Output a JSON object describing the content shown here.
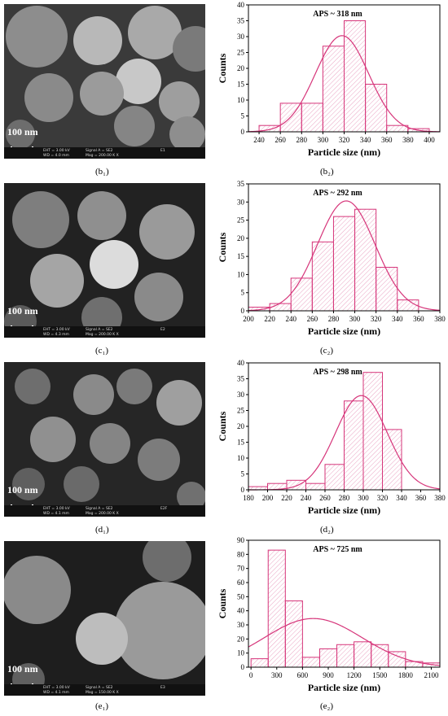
{
  "panels": [
    {
      "img": {
        "scale_label": "100 nm",
        "info": [
          "EHT = 3.00 kV",
          "WD = 4.0 mm",
          "Signal A = SE2",
          "Mag = 200.00 K X",
          "E1"
        ],
        "caption": "(b₁)"
      },
      "caption": "(b₂)"
    },
    {
      "img": {
        "scale_label": "100 nm",
        "info": [
          "EHT = 3.00 kV",
          "WD = 4.3 mm",
          "Signal A = SE2",
          "Mag = 200.00 K X",
          "E2"
        ],
        "caption": "(c₁)"
      },
      "caption": "(c₂)"
    },
    {
      "img": {
        "scale_label": "100 nm",
        "info": [
          "EHT = 3.00 kV",
          "WD = 4.1 mm",
          "Signal A = SE2",
          "Mag = 200.00 K X",
          "E2F"
        ],
        "caption": "(d₁)"
      },
      "caption": "(d₂)"
    },
    {
      "img": {
        "scale_label": "100 nm",
        "info": [
          "EHT = 3.00 kV",
          "WD = 4.1 mm",
          "Signal A = SE2",
          "Mag = 150.00 K X",
          "E3"
        ],
        "caption": "(e₁)"
      },
      "caption": "(e₂)"
    }
  ],
  "colors": {
    "bar": "#d6357a",
    "hatch": "#e58db4",
    "axis": "#000000"
  },
  "chart_data": [
    {
      "type": "bar",
      "annotation": "APS ~ 318 nm",
      "xlabel": "Particle size (nm)",
      "ylabel": "Counts",
      "xlim": [
        230,
        410
      ],
      "ylim": [
        0,
        40
      ],
      "xticks": [
        240,
        260,
        280,
        300,
        320,
        340,
        360,
        380,
        400
      ],
      "yticks": [
        0,
        5,
        10,
        15,
        20,
        25,
        30,
        35,
        40
      ],
      "bin_edges": [
        240,
        260,
        280,
        300,
        320,
        340,
        360,
        380,
        400
      ],
      "values": [
        2,
        9,
        9,
        27,
        35,
        15,
        2,
        1
      ],
      "fit": {
        "type": "gaussian",
        "mean": 318,
        "sigma": 25,
        "peak": 30.3
      }
    },
    {
      "type": "bar",
      "annotation": "APS ~ 292 nm",
      "xlabel": "Particle size (nm)",
      "ylabel": "Counts",
      "xlim": [
        200,
        380
      ],
      "ylim": [
        0,
        35
      ],
      "xticks": [
        200,
        220,
        240,
        260,
        280,
        300,
        320,
        340,
        360,
        380
      ],
      "yticks": [
        0,
        5,
        10,
        15,
        20,
        25,
        30,
        35
      ],
      "bin_edges": [
        200,
        220,
        240,
        260,
        280,
        300,
        320,
        340,
        360
      ],
      "values": [
        1,
        2,
        9,
        19,
        26,
        28,
        12,
        3
      ],
      "fit": {
        "type": "gaussian",
        "mean": 292,
        "sigma": 27,
        "peak": 30.3
      }
    },
    {
      "type": "bar",
      "annotation": "APS ~ 298 nm",
      "xlabel": "Particle size (nm)",
      "ylabel": "Counts",
      "xlim": [
        180,
        380
      ],
      "ylim": [
        0,
        40
      ],
      "xticks": [
        180,
        200,
        220,
        240,
        260,
        280,
        300,
        320,
        340,
        360,
        380
      ],
      "yticks": [
        0,
        5,
        10,
        15,
        20,
        25,
        30,
        35,
        40
      ],
      "bin_edges": [
        180,
        200,
        220,
        240,
        260,
        280,
        300,
        320,
        340
      ],
      "values": [
        1,
        2,
        3,
        2,
        8,
        28,
        37,
        19
      ],
      "fit": {
        "type": "gaussian",
        "mean": 298,
        "sigma": 27,
        "peak": 29.7
      }
    },
    {
      "type": "bar",
      "annotation": "APS ~ 725 nm",
      "xlabel": "Particle size (nm)",
      "ylabel": "Counts",
      "xlim": [
        -30,
        2200
      ],
      "ylim": [
        0,
        90
      ],
      "xticks": [
        0,
        300,
        600,
        900,
        1200,
        1500,
        1800,
        2100
      ],
      "yticks": [
        0,
        10,
        20,
        30,
        40,
        50,
        60,
        70,
        80,
        90
      ],
      "bin_edges": [
        0,
        200,
        400,
        600,
        800,
        1000,
        1200,
        1400,
        1600,
        1800,
        2000,
        2200
      ],
      "values": [
        6,
        83,
        47,
        7,
        13,
        16,
        18,
        16,
        11,
        4,
        3
      ],
      "fit": {
        "type": "gaussian",
        "mean": 725,
        "sigma": 570,
        "peak": 34.5
      }
    }
  ]
}
